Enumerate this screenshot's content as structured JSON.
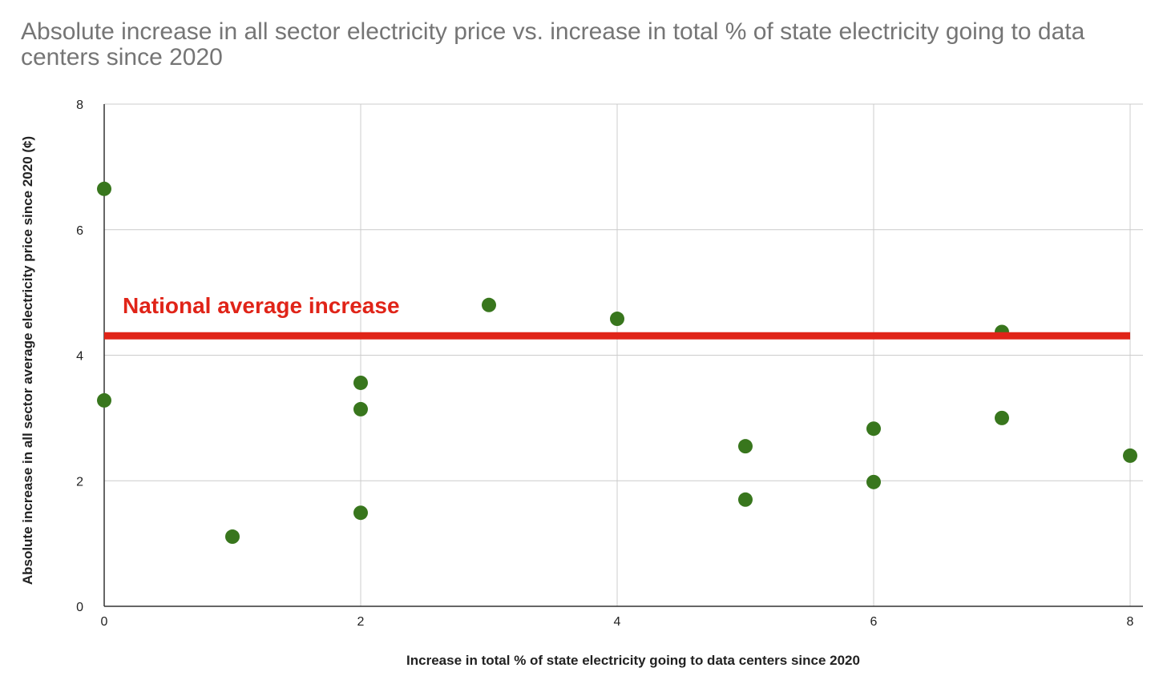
{
  "chart_data": {
    "type": "scatter",
    "title": "Absolute increase in all sector electricity price vs. increase in total % of state electricity going to data centers since 2020",
    "xlabel": "Increase in total % of state electricity going to data centers since 2020",
    "ylabel": "Absolute increase in all sector average electricity price since 2020 (¢)",
    "xlim": [
      0,
      8.1
    ],
    "ylim": [
      0,
      8
    ],
    "xticks": [
      0,
      2,
      4,
      6,
      8
    ],
    "yticks": [
      0,
      2,
      4,
      6,
      8
    ],
    "grid": true,
    "point_color": "#38761d",
    "points": [
      {
        "x": 0,
        "y": 6.65
      },
      {
        "x": 0,
        "y": 3.28
      },
      {
        "x": 1,
        "y": 1.11
      },
      {
        "x": 2,
        "y": 3.56
      },
      {
        "x": 2,
        "y": 3.14
      },
      {
        "x": 2,
        "y": 1.49
      },
      {
        "x": 3,
        "y": 4.8
      },
      {
        "x": 4,
        "y": 4.58
      },
      {
        "x": 5,
        "y": 2.55
      },
      {
        "x": 5,
        "y": 1.7
      },
      {
        "x": 6,
        "y": 2.83
      },
      {
        "x": 6,
        "y": 1.98
      },
      {
        "x": 7,
        "y": 4.37
      },
      {
        "x": 7,
        "y": 3.0
      },
      {
        "x": 8,
        "y": 2.4
      }
    ],
    "reference_line": {
      "label": "National average increase",
      "y": 4.31,
      "x_range": [
        0,
        8
      ],
      "color": "#e02418"
    }
  }
}
